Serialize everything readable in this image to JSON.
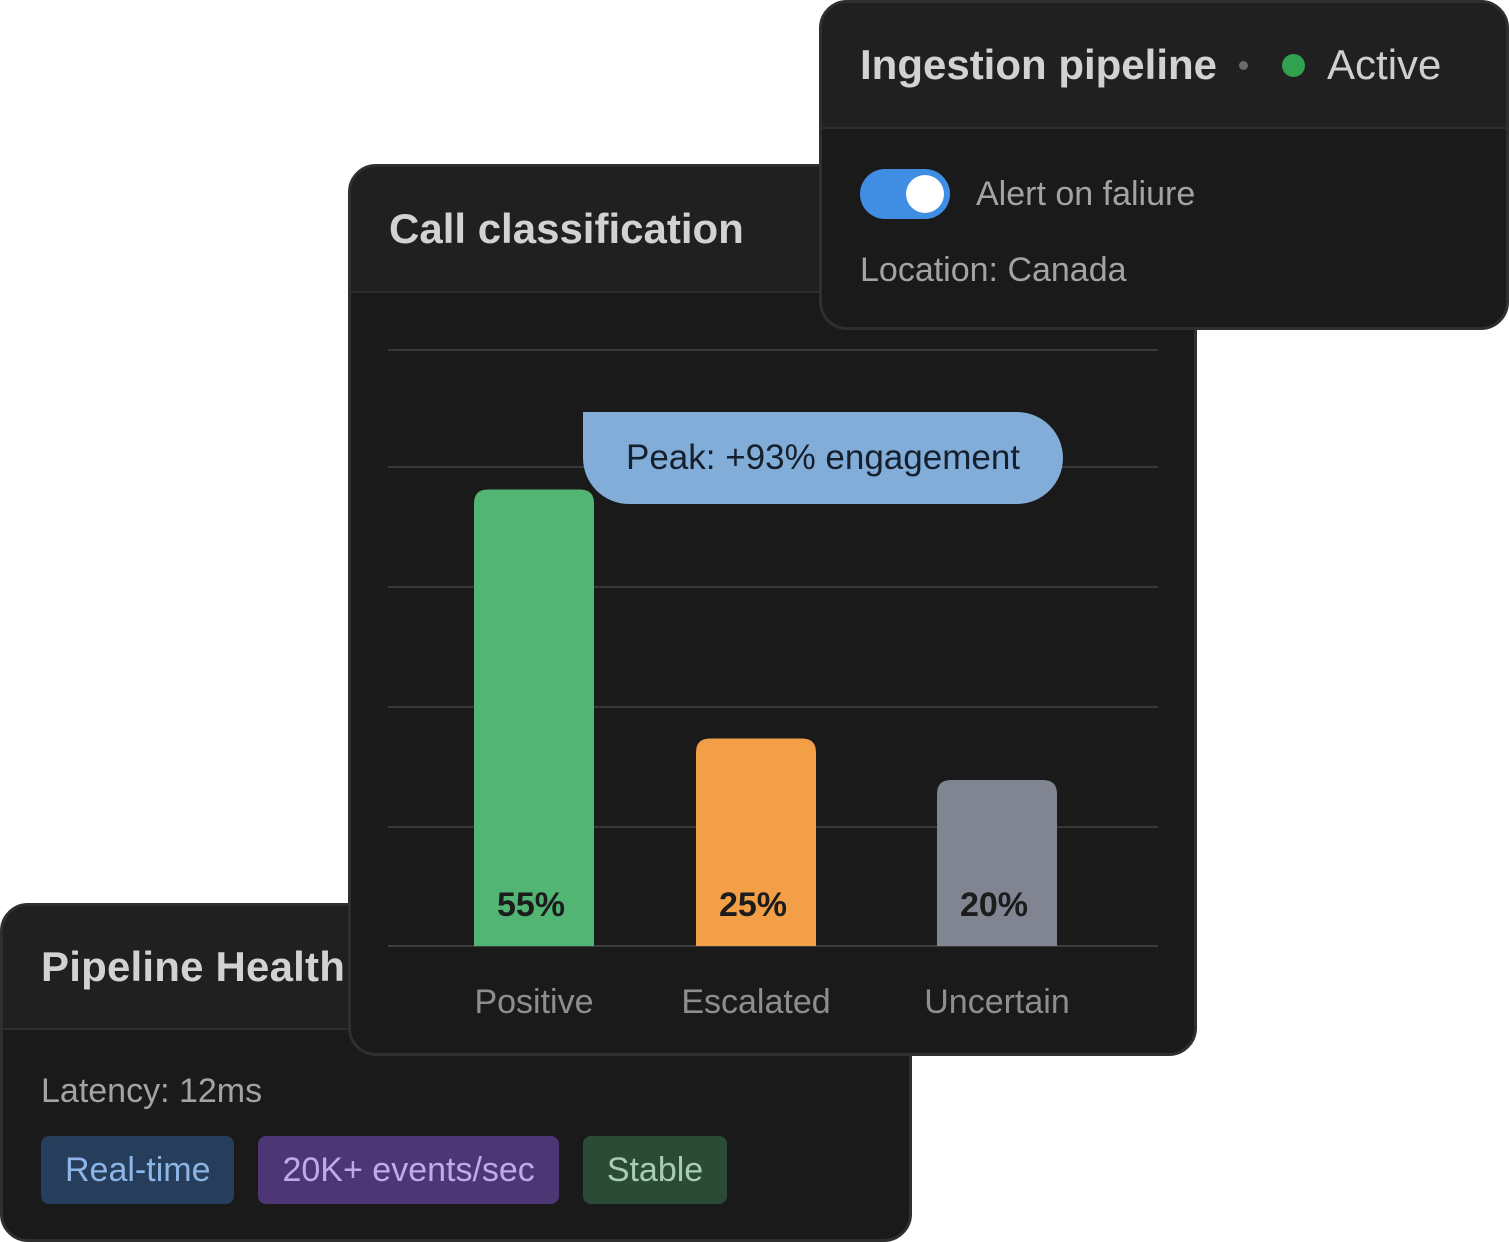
{
  "pipeline_health": {
    "title": "Pipeline Health",
    "latency": "Latency: 12ms",
    "tags": [
      "Real-time",
      "20K+ events/sec",
      "Stable"
    ]
  },
  "call_classification": {
    "title": "Call classification",
    "tooltip": "Peak: +93% engagement"
  },
  "ingestion_pipeline": {
    "title": "Ingestion pipeline",
    "status": "Active",
    "status_color": "#2fa14f",
    "alert_toggle": {
      "label": "Alert on faliure",
      "on": true,
      "color": "#3f8ee3"
    },
    "location": "Location: Canada"
  },
  "chart_data": {
    "type": "bar",
    "categories": [
      "Positive",
      "Escalated",
      "Uncertain"
    ],
    "values": [
      55,
      25,
      20
    ],
    "data_labels": [
      "55%",
      "25%",
      "20%"
    ],
    "colors": [
      "#52b573",
      "#f39f47",
      "#808591"
    ],
    "grid": true
  }
}
